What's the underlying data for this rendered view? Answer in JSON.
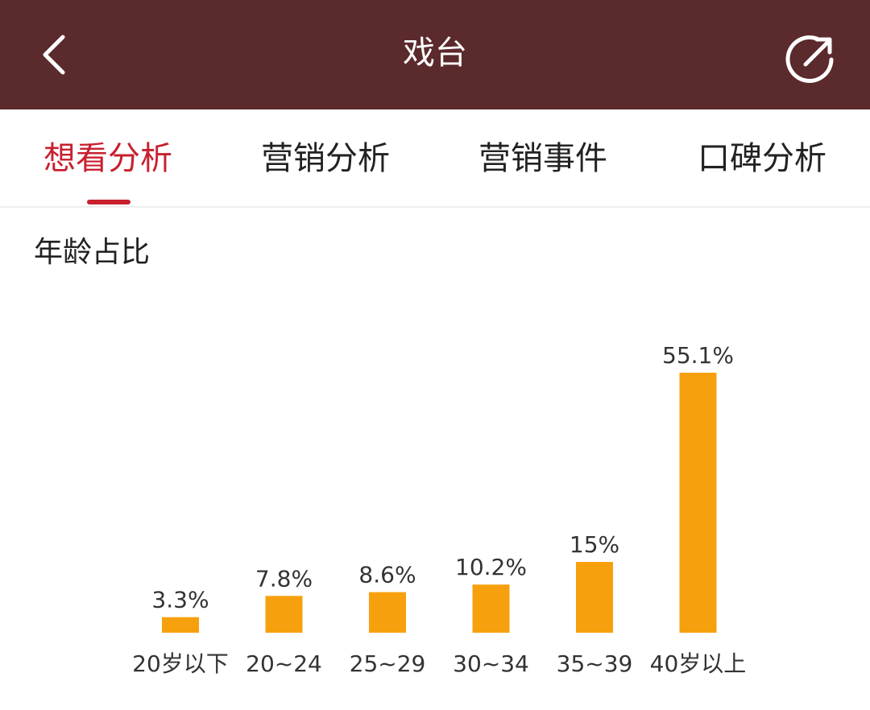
{
  "header": {
    "title": "戏台",
    "back_icon": "chevron-left-icon",
    "share_icon": "share-icon",
    "background_color": "#5b2a2c"
  },
  "tabs": [
    {
      "label": "想看分析",
      "active": true
    },
    {
      "label": "营销分析",
      "active": false
    },
    {
      "label": "营销事件",
      "active": false
    },
    {
      "label": "口碑分析",
      "active": false
    }
  ],
  "accent_color": "#c8202f",
  "section": {
    "title": "年龄占比"
  },
  "chart_data": {
    "type": "bar",
    "title": "年龄占比",
    "categories": [
      "20岁以下",
      "20~24",
      "25~29",
      "30~34",
      "35~39",
      "40岁以上"
    ],
    "values": [
      3.3,
      7.8,
      8.6,
      10.2,
      15,
      55.1
    ],
    "value_labels": [
      "3.3%",
      "7.8%",
      "8.6%",
      "10.2%",
      "15%",
      "55.1%"
    ],
    "unit": "%",
    "bar_color": "#f7a00d",
    "grid": false
  }
}
